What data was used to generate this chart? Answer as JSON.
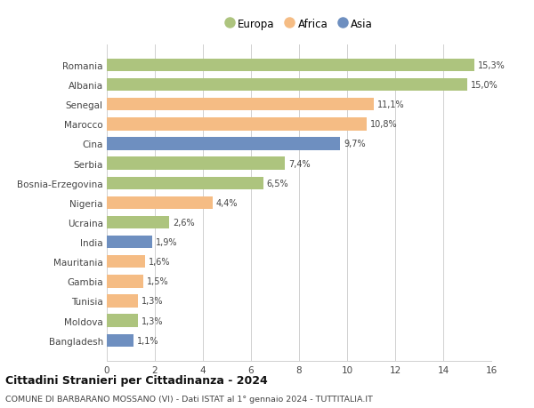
{
  "categories": [
    "Romania",
    "Albania",
    "Senegal",
    "Marocco",
    "Cina",
    "Serbia",
    "Bosnia-Erzegovina",
    "Nigeria",
    "Ucraina",
    "India",
    "Mauritania",
    "Gambia",
    "Tunisia",
    "Moldova",
    "Bangladesh"
  ],
  "values": [
    15.3,
    15.0,
    11.1,
    10.8,
    9.7,
    7.4,
    6.5,
    4.4,
    2.6,
    1.9,
    1.6,
    1.5,
    1.3,
    1.3,
    1.1
  ],
  "labels": [
    "15,3%",
    "15,0%",
    "11,1%",
    "10,8%",
    "9,7%",
    "7,4%",
    "6,5%",
    "4,4%",
    "2,6%",
    "1,9%",
    "1,6%",
    "1,5%",
    "1,3%",
    "1,3%",
    "1,1%"
  ],
  "continents": [
    "Europa",
    "Europa",
    "Africa",
    "Africa",
    "Asia",
    "Europa",
    "Europa",
    "Africa",
    "Europa",
    "Asia",
    "Africa",
    "Africa",
    "Africa",
    "Europa",
    "Asia"
  ],
  "colors": {
    "Europa": "#adc47e",
    "Africa": "#f5bc84",
    "Asia": "#6e8fc0"
  },
  "xlim": [
    0,
    16
  ],
  "xticks": [
    0,
    2,
    4,
    6,
    8,
    10,
    12,
    14,
    16
  ],
  "title": "Cittadini Stranieri per Cittadinanza - 2024",
  "subtitle": "COMUNE DI BARBARANO MOSSANO (VI) - Dati ISTAT al 1° gennaio 2024 - TUTTITALIA.IT",
  "background_color": "#ffffff",
  "grid_color": "#d0d0d0",
  "bar_height": 0.65,
  "legend_order": [
    "Europa",
    "Africa",
    "Asia"
  ]
}
